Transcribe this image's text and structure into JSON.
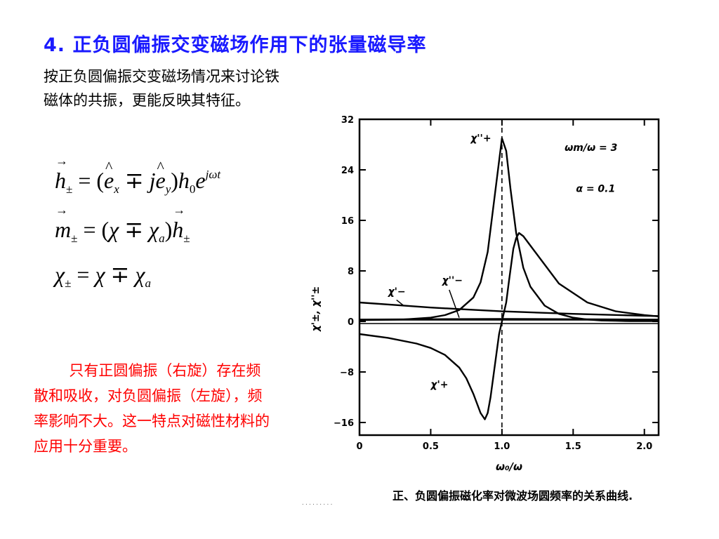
{
  "slide": {
    "title": "4. 正负圆偏振交变磁场作用下的张量磁导率",
    "intro": "按正负圆偏振交变磁场情况来讨论铁磁体的共振，更能反映其特征。",
    "note": "只有正圆偏振（右旋）存在频散和吸收，对负圆偏振（左旋），频率影响不大。这一特点对磁性材料的应用十分重要。",
    "dots": ". . . . . . . . ."
  },
  "equations": {
    "eq1": {
      "h": "h",
      "pm": "±",
      "eq": "=",
      "lp": "(",
      "e1": "e",
      "x": "x",
      "mp": "∓",
      "j": "j",
      "e2": "e",
      "y": "y",
      "rp": ")",
      "h0": "h",
      "zero": "0",
      "e": "e",
      "exp": "jωt"
    },
    "eq2": {
      "m": "m",
      "pm": "±",
      "eq": "=",
      "lp": "(",
      "chi": "χ",
      "mp": "∓",
      "chi2": "χ",
      "a": "a",
      "rp": ")",
      "h": "h",
      "pm2": "±"
    },
    "eq3": {
      "chi": "χ",
      "pm": "±",
      "eq": "=",
      "chi2": "χ",
      "mp": "∓",
      "chi3": "χ",
      "a": "a"
    }
  },
  "chart_data": {
    "type": "line",
    "caption": "正、负圆偏振磁化率对微波场圆频率的关系曲线.",
    "xlabel": "ω₀/ω",
    "ylabel": "χ'±, χ''±",
    "xlim": [
      0,
      2.1
    ],
    "ylim": [
      -18,
      32
    ],
    "x_ticks": [
      "0",
      "0.5",
      "1.0",
      "1.5",
      "2.0"
    ],
    "x_tick_values": [
      0,
      0.5,
      1.0,
      1.5,
      2.0
    ],
    "y_ticks": [
      "32",
      "24",
      "16",
      "8",
      "0",
      "−8",
      "−16"
    ],
    "y_tick_values": [
      32,
      24,
      16,
      8,
      0,
      -8,
      -16
    ],
    "params": {
      "line1": "ωm/ω = 3",
      "line2": "α = 0.1"
    },
    "resonance_x": 1.0,
    "series": [
      {
        "name": "χ''+",
        "x": [
          0.0,
          0.3,
          0.5,
          0.6,
          0.7,
          0.8,
          0.85,
          0.9,
          0.95,
          1.0,
          1.03,
          1.06,
          1.1,
          1.15,
          1.2,
          1.3,
          1.4,
          1.5,
          1.6,
          1.7,
          1.8,
          1.9,
          2.0,
          2.1
        ],
        "y": [
          0.2,
          0.3,
          0.6,
          1.0,
          1.8,
          3.8,
          6.2,
          11.0,
          20.0,
          29.0,
          27.0,
          21.0,
          14.0,
          8.5,
          5.5,
          2.5,
          1.2,
          0.6,
          0.3,
          0.15,
          0.1,
          0.05,
          0.05,
          0.05
        ]
      },
      {
        "name": "χ'+",
        "x": [
          0.0,
          0.2,
          0.4,
          0.5,
          0.6,
          0.7,
          0.75,
          0.8,
          0.85,
          0.88,
          0.9,
          0.92,
          0.95,
          0.98,
          1.0,
          1.03,
          1.05,
          1.08,
          1.1,
          1.12,
          1.15,
          1.2,
          1.3,
          1.4,
          1.6,
          1.8,
          2.0,
          2.1
        ],
        "y": [
          -2.0,
          -2.6,
          -3.5,
          -4.2,
          -5.3,
          -7.3,
          -9.0,
          -11.5,
          -14.5,
          -15.5,
          -14.5,
          -12.0,
          -7.0,
          -2.0,
          0.0,
          3.0,
          6.5,
          11.5,
          13.2,
          14.0,
          13.5,
          12.0,
          9.0,
          6.0,
          3.0,
          1.6,
          1.0,
          0.8
        ]
      },
      {
        "name": "χ'−",
        "x": [
          0.0,
          0.25,
          0.5,
          0.75,
          1.0,
          1.25,
          1.5,
          1.75,
          2.0,
          2.1
        ],
        "y": [
          3.0,
          2.6,
          2.2,
          1.9,
          1.6,
          1.4,
          1.2,
          1.05,
          0.9,
          0.85
        ]
      },
      {
        "name": "χ''−",
        "x": [
          0.0,
          0.5,
          1.0,
          1.5,
          2.0,
          2.1
        ],
        "y": [
          0.3,
          0.35,
          0.4,
          0.35,
          0.3,
          0.3
        ]
      }
    ]
  }
}
